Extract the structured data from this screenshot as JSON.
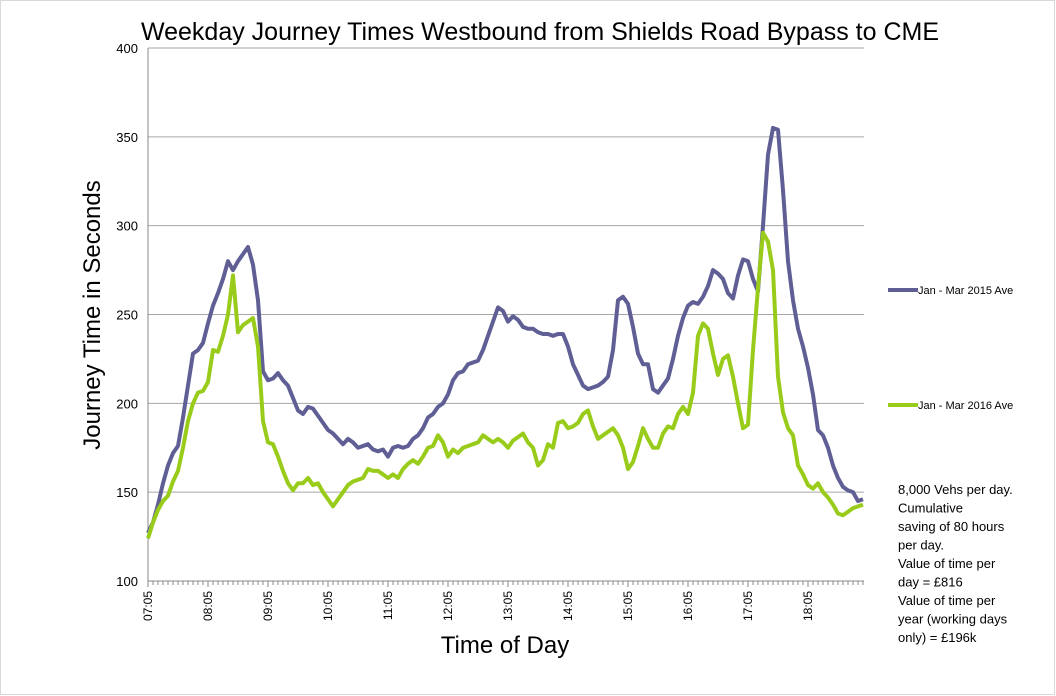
{
  "chart_data": {
    "type": "line",
    "title": "Weekday Journey Times Westbound from Shields Road Bypass to CME",
    "x_label": "Time of Day",
    "y_label": "Journey Time in Seconds",
    "categories": [
      "07:05",
      null,
      null,
      null,
      null,
      null,
      null,
      null,
      null,
      null,
      null,
      null,
      "08:05",
      null,
      null,
      null,
      null,
      null,
      null,
      null,
      null,
      null,
      null,
      null,
      "09:05",
      null,
      null,
      null,
      null,
      null,
      null,
      null,
      null,
      null,
      null,
      null,
      "10:05",
      null,
      null,
      null,
      null,
      null,
      null,
      null,
      null,
      null,
      null,
      null,
      "11:05",
      null,
      null,
      null,
      null,
      null,
      null,
      null,
      null,
      null,
      null,
      null,
      "12:05",
      null,
      null,
      null,
      null,
      null,
      null,
      null,
      null,
      null,
      null,
      null,
      "13:05",
      null,
      null,
      null,
      null,
      null,
      null,
      null,
      null,
      null,
      null,
      null,
      "14:05",
      null,
      null,
      null,
      null,
      null,
      null,
      null,
      null,
      null,
      null,
      null,
      "15:05",
      null,
      null,
      null,
      null,
      null,
      null,
      null,
      null,
      null,
      null,
      null,
      "16:05",
      null,
      null,
      null,
      null,
      null,
      null,
      null,
      null,
      null,
      null,
      null,
      "17:05",
      null,
      null,
      null,
      null,
      null,
      null,
      null,
      null,
      null,
      null,
      null,
      "18:05",
      null,
      null,
      null,
      null,
      null,
      null,
      null,
      null,
      null,
      null,
      null
    ],
    "series": [
      {
        "name": "Jan - Mar 2015 Ave",
        "color": "#5f5f95",
        "values": [
          127,
          133,
          143,
          155,
          165,
          172,
          176,
          192,
          210,
          228,
          230,
          234,
          245,
          255,
          262,
          270,
          280,
          275,
          280,
          284,
          288,
          278,
          258,
          218,
          213,
          214,
          217,
          213,
          210,
          203,
          196,
          194,
          198,
          197,
          193,
          189,
          185,
          183,
          180,
          177,
          180,
          178,
          175,
          176,
          177,
          174,
          173,
          174,
          170,
          175,
          176,
          175,
          176,
          180,
          182,
          186,
          192,
          194,
          198,
          200,
          205,
          213,
          217,
          218,
          222,
          223,
          224,
          230,
          238,
          246,
          254,
          252,
          246,
          249,
          247,
          243,
          242,
          242,
          240,
          239,
          239,
          238,
          239,
          239,
          232,
          222,
          216,
          210,
          208,
          209,
          210,
          212,
          215,
          230,
          258,
          260,
          256,
          243,
          228,
          222,
          222,
          208,
          206,
          210,
          214,
          225,
          238,
          248,
          255,
          257,
          256,
          260,
          266,
          275,
          273,
          270,
          262,
          259,
          272,
          281,
          280,
          270,
          263,
          300,
          340,
          355,
          354,
          320,
          280,
          258,
          242,
          232,
          220,
          205,
          185,
          182,
          175,
          165,
          158,
          153,
          151,
          150,
          145,
          146
        ]
      },
      {
        "name": "Jan - Mar 2016 Ave",
        "color": "#99cc1a",
        "values": [
          124,
          133,
          140,
          145,
          148,
          156,
          162,
          175,
          190,
          200,
          206,
          207,
          212,
          230,
          229,
          238,
          250,
          272,
          240,
          244,
          246,
          248,
          232,
          190,
          178,
          177,
          170,
          162,
          155,
          151,
          155,
          155,
          158,
          154,
          155,
          150,
          146,
          142,
          146,
          150,
          154,
          156,
          157,
          158,
          163,
          162,
          162,
          160,
          158,
          160,
          158,
          163,
          166,
          168,
          166,
          170,
          175,
          176,
          182,
          178,
          170,
          174,
          172,
          175,
          176,
          177,
          178,
          182,
          180,
          178,
          180,
          178,
          175,
          179,
          181,
          183,
          178,
          175,
          165,
          168,
          177,
          175,
          189,
          190,
          186,
          187,
          189,
          194,
          196,
          187,
          180,
          182,
          184,
          186,
          182,
          175,
          163,
          167,
          176,
          186,
          180,
          175,
          175,
          183,
          187,
          186,
          194,
          198,
          194,
          206,
          238,
          245,
          242,
          228,
          216,
          225,
          227,
          215,
          200,
          186,
          188,
          230,
          265,
          296,
          291,
          275,
          215,
          195,
          186,
          182,
          165,
          160,
          154,
          152,
          155,
          150,
          147,
          143,
          138,
          137,
          139,
          141,
          142,
          143
        ]
      }
    ],
    "ylim": [
      100,
      400
    ],
    "yticks": [
      100,
      150,
      200,
      250,
      300,
      350,
      400
    ],
    "grid": true,
    "legend": "right",
    "annotation": [
      "8,000 Vehs per day.",
      "Cumulative",
      "saving of 80 hours",
      "per day.",
      "Value of time per",
      "day = £816",
      "Value of time per",
      "year (working days",
      "only) = £196k"
    ]
  }
}
